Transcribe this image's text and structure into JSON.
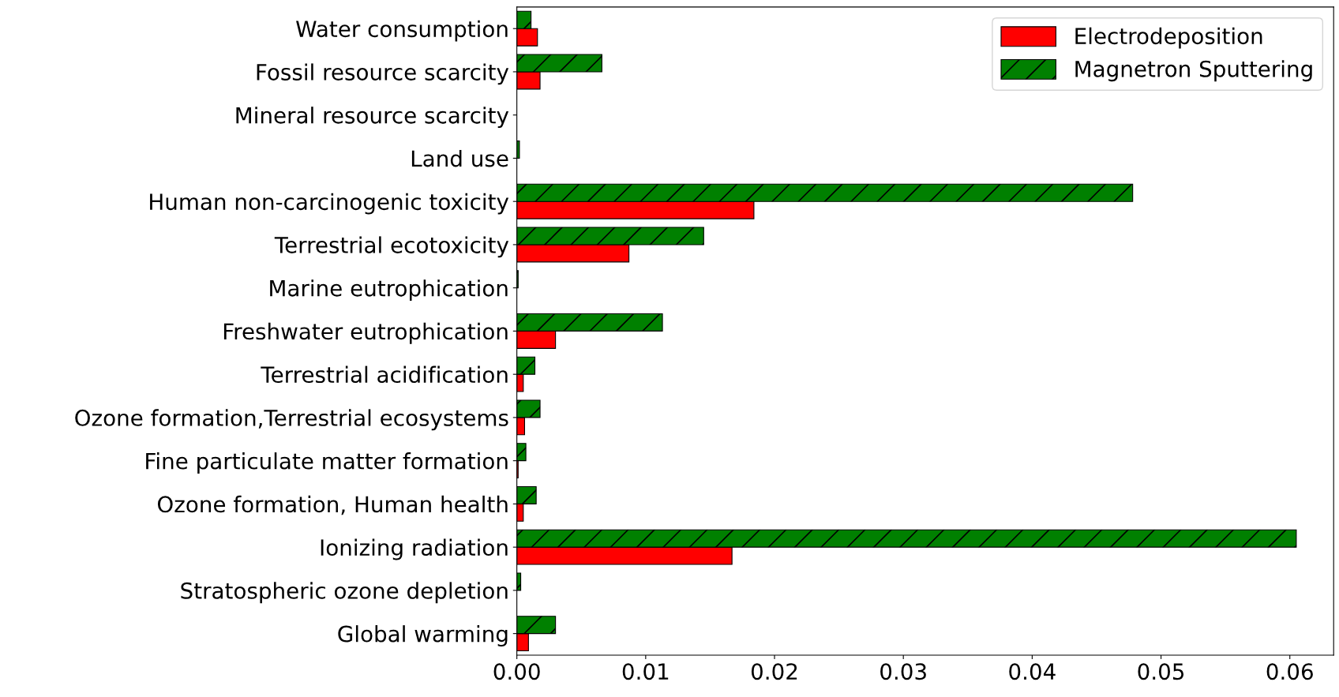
{
  "chart_data": {
    "type": "bar",
    "orientation": "horizontal",
    "categories": [
      "Water consumption",
      "Fossil resource scarcity",
      "Mineral resource scarcity",
      "Land use",
      "Human non-carcinogenic toxicity",
      "Terrestrial ecotoxicity",
      "Marine eutrophication",
      "Freshwater eutrophication",
      "Terrestrial acidification",
      "Ozone formation,Terrestrial ecosystems",
      "Fine particulate matter formation",
      "Ozone formation, Human health",
      "Ionizing radiation",
      "Stratospheric ozone depletion",
      "Global warming"
    ],
    "series": [
      {
        "name": "Electrodeposition",
        "color": "#ff0000",
        "values": [
          0.0016,
          0.0018,
          null,
          null,
          0.0184,
          0.0087,
          null,
          0.003,
          0.0005,
          0.0006,
          0.0001,
          0.0005,
          0.0167,
          null,
          0.0009
        ]
      },
      {
        "name": "Magnetron Sputtering",
        "color": "#008000",
        "values": [
          0.0011,
          0.0066,
          null,
          0.0002,
          0.0478,
          0.0145,
          0.0001,
          0.0113,
          0.0014,
          0.0018,
          0.0007,
          0.0015,
          0.0605,
          0.0003,
          0.003
        ]
      }
    ],
    "xlim": [
      0,
      0.0634
    ],
    "xticks": [
      {
        "value": 0,
        "label": "0.00"
      },
      {
        "value": 0.01,
        "label": "0.01"
      },
      {
        "value": 0.02,
        "label": "0.02"
      },
      {
        "value": 0.03,
        "label": "0.03"
      },
      {
        "value": 0.04,
        "label": "0.04"
      },
      {
        "value": 0.05,
        "label": "0.05"
      },
      {
        "value": 0.06,
        "label": "0.06"
      }
    ],
    "legend": "top right",
    "grid": false
  }
}
